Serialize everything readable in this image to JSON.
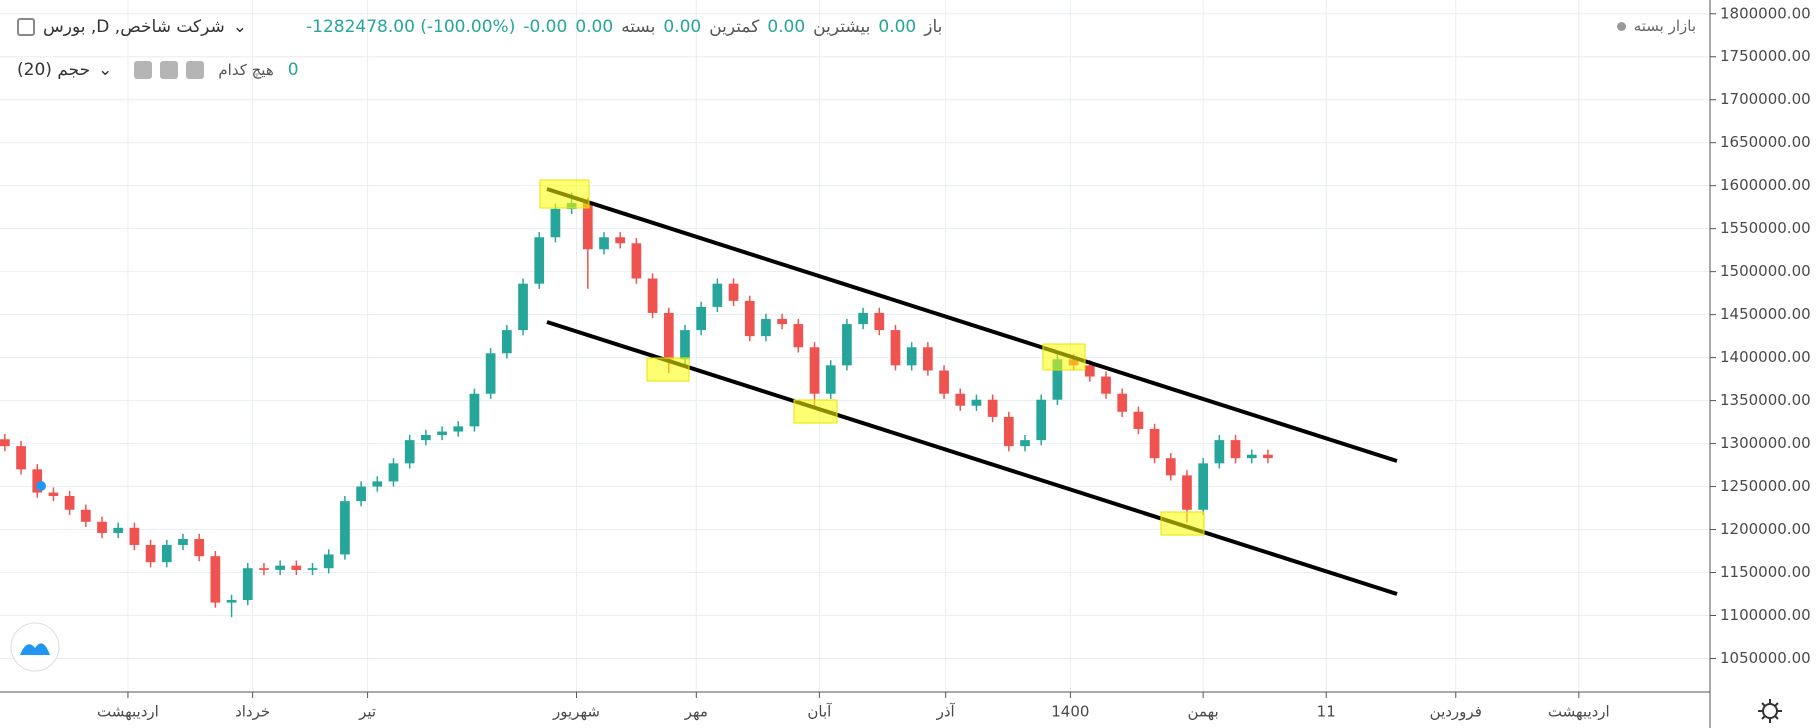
{
  "header": {
    "symbol": "شرکت شاخص, D, بورس",
    "ohlc": [
      {
        "label": "باز",
        "value": "0.00"
      },
      {
        "label": "بیشترین",
        "value": "0.00"
      },
      {
        "label": "کمترین",
        "value": "0.00"
      },
      {
        "label": "بسته",
        "value": "0.00"
      }
    ],
    "change": "-0.00",
    "change_pct": "-1282478.00 (-100.00%)",
    "status": "بازار بسته",
    "indicator": "حجم (20)",
    "indicator_none": "هیچ کدام",
    "indicator_value": "0"
  },
  "chart_data": {
    "type": "candlestick",
    "up_color": "#26a69a",
    "down_color": "#ef5350",
    "grid": true,
    "x": [
      0,
      1,
      2,
      3,
      4,
      5,
      6,
      7,
      8,
      9,
      10,
      11,
      12,
      13,
      14,
      15,
      16,
      17,
      18,
      19,
      20,
      21,
      22,
      23,
      24,
      25,
      26,
      27,
      28,
      29,
      30,
      31,
      32,
      33,
      34,
      35,
      36,
      37,
      38,
      39,
      40,
      41,
      42,
      43,
      44,
      45,
      46,
      47,
      48,
      49,
      50,
      51,
      52,
      53,
      54,
      55,
      56,
      57,
      58,
      59,
      60,
      61,
      62,
      63,
      64,
      65,
      66,
      67,
      68,
      69,
      70,
      71,
      72,
      73,
      74,
      75,
      76,
      77,
      78
    ],
    "open": [
      1305000,
      1297000,
      1270000,
      1243000,
      1239000,
      1223000,
      1209000,
      1196000,
      1202000,
      1182000,
      1162000,
      1182000,
      1189000,
      1169000,
      1115000,
      1118000,
      1155000,
      1153000,
      1158000,
      1153000,
      1155000,
      1171000,
      1233000,
      1250000,
      1256000,
      1277000,
      1304000,
      1310000,
      1314000,
      1320000,
      1358000,
      1405000,
      1432000,
      1486000,
      1540000,
      1573000,
      1580000,
      1526000,
      1540000,
      1533000,
      1492000,
      1452000,
      1398000,
      1432000,
      1459000,
      1486000,
      1466000,
      1425000,
      1445000,
      1439000,
      1412000,
      1358000,
      1391000,
      1439000,
      1452000,
      1432000,
      1391000,
      1412000,
      1385000,
      1358000,
      1344000,
      1351000,
      1331000,
      1297000,
      1304000,
      1351000,
      1398000,
      1391000,
      1378000,
      1358000,
      1337000,
      1317000,
      1283000,
      1263000,
      1223000,
      1277000,
      1304000,
      1283000,
      1287000
    ],
    "high": [
      1311000,
      1303000,
      1276000,
      1249000,
      1245000,
      1229000,
      1215000,
      1208000,
      1208000,
      1188000,
      1188000,
      1195000,
      1195000,
      1175000,
      1124000,
      1161000,
      1161000,
      1164000,
      1164000,
      1161000,
      1177000,
      1239000,
      1256000,
      1262000,
      1283000,
      1310000,
      1316000,
      1320000,
      1326000,
      1364000,
      1411000,
      1438000,
      1492000,
      1546000,
      1579000,
      1592000,
      1586000,
      1546000,
      1546000,
      1539000,
      1498000,
      1458000,
      1438000,
      1465000,
      1492000,
      1492000,
      1472000,
      1451000,
      1451000,
      1445000,
      1418000,
      1397000,
      1445000,
      1458000,
      1458000,
      1438000,
      1418000,
      1418000,
      1391000,
      1364000,
      1357000,
      1357000,
      1337000,
      1310000,
      1357000,
      1404000,
      1404000,
      1397000,
      1384000,
      1364000,
      1343000,
      1323000,
      1289000,
      1269000,
      1283000,
      1310000,
      1310000,
      1293000,
      1293000
    ],
    "low": [
      1291000,
      1264000,
      1237000,
      1233000,
      1217000,
      1203000,
      1190000,
      1190000,
      1176000,
      1156000,
      1156000,
      1176000,
      1163000,
      1109000,
      1098000,
      1112000,
      1147000,
      1147000,
      1147000,
      1147000,
      1149000,
      1165000,
      1227000,
      1244000,
      1250000,
      1271000,
      1298000,
      1304000,
      1308000,
      1314000,
      1352000,
      1399000,
      1426000,
      1480000,
      1534000,
      1567000,
      1480000,
      1520000,
      1527000,
      1486000,
      1446000,
      1382000,
      1392000,
      1426000,
      1453000,
      1460000,
      1419000,
      1419000,
      1433000,
      1406000,
      1340000,
      1352000,
      1385000,
      1433000,
      1426000,
      1385000,
      1385000,
      1379000,
      1352000,
      1338000,
      1338000,
      1325000,
      1291000,
      1291000,
      1298000,
      1345000,
      1385000,
      1372000,
      1352000,
      1331000,
      1311000,
      1277000,
      1257000,
      1208000,
      1217000,
      1271000,
      1277000,
      1277000,
      1277000
    ],
    "close": [
      1297000,
      1270000,
      1243000,
      1239000,
      1223000,
      1209000,
      1196000,
      1202000,
      1182000,
      1162000,
      1182000,
      1189000,
      1169000,
      1115000,
      1118000,
      1155000,
      1153000,
      1158000,
      1153000,
      1155000,
      1171000,
      1233000,
      1250000,
      1256000,
      1277000,
      1304000,
      1310000,
      1314000,
      1320000,
      1358000,
      1405000,
      1432000,
      1486000,
      1540000,
      1573000,
      1580000,
      1526000,
      1540000,
      1533000,
      1492000,
      1452000,
      1398000,
      1432000,
      1459000,
      1486000,
      1466000,
      1425000,
      1445000,
      1439000,
      1412000,
      1358000,
      1391000,
      1439000,
      1452000,
      1432000,
      1391000,
      1412000,
      1385000,
      1358000,
      1344000,
      1351000,
      1331000,
      1297000,
      1304000,
      1351000,
      1398000,
      1391000,
      1378000,
      1358000,
      1337000,
      1317000,
      1283000,
      1263000,
      1223000,
      1277000,
      1304000,
      1283000,
      1287000,
      1283000
    ],
    "xlim": [
      -0.3,
      105.3
    ],
    "xticks": [
      {
        "value": 7.6,
        "label": "اردیبهشت"
      },
      {
        "value": 15.3,
        "label": "خرداد"
      },
      {
        "value": 22.4,
        "label": "تیر"
      },
      {
        "value": 35.3,
        "label": "شهریور"
      },
      {
        "value": 42.7,
        "label": "مهر"
      },
      {
        "value": 50.3,
        "label": "آبان"
      },
      {
        "value": 58.1,
        "label": "آذر"
      },
      {
        "value": 65.8,
        "label": "1400"
      },
      {
        "value": 74,
        "label": "بهمن"
      },
      {
        "value": 81.6,
        "label": "11"
      },
      {
        "value": 89.6,
        "label": "فروردین"
      },
      {
        "value": 97.2,
        "label": "اردیبهشت"
      }
    ],
    "ylim": [
      1011000,
      1816000
    ],
    "yticks": [
      {
        "value": 1050000,
        "label": "1050000.00"
      },
      {
        "value": 1100000,
        "label": "1100000.00"
      },
      {
        "value": 1150000,
        "label": "1150000.00"
      },
      {
        "value": 1200000,
        "label": "1200000.00"
      },
      {
        "value": 1250000,
        "label": "1250000.00"
      },
      {
        "value": 1300000,
        "label": "1300000.00"
      },
      {
        "value": 1350000,
        "label": "1350000.00"
      },
      {
        "value": 1400000,
        "label": "1400000.00"
      },
      {
        "value": 1450000,
        "label": "1450000.00"
      },
      {
        "value": 1500000,
        "label": "1500000.00"
      },
      {
        "value": 1550000,
        "label": "1550000.00"
      },
      {
        "value": 1600000,
        "label": "1600000.00"
      },
      {
        "value": 1650000,
        "label": "1650000.00"
      },
      {
        "value": 1700000,
        "label": "1700000.00"
      },
      {
        "value": 1750000,
        "label": "1750000.00"
      },
      {
        "value": 1800000,
        "label": "1800000.00"
      }
    ]
  }
}
